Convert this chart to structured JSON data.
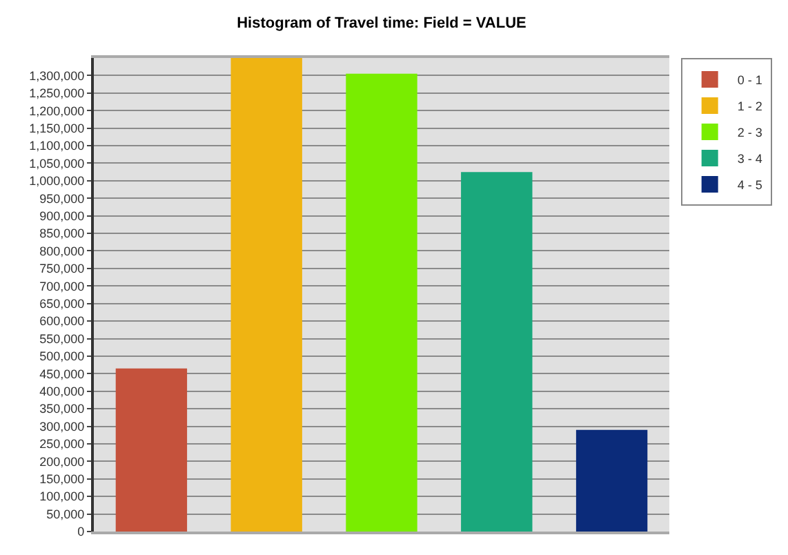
{
  "chart_data": {
    "type": "bar",
    "title": "Histogram of Travel time: Field = VALUE",
    "categories": [
      null,
      null,
      null,
      null,
      null
    ],
    "series": [
      {
        "name": "0 - 1",
        "color": "#c5523c",
        "values": [
          465000,
          null,
          null,
          null,
          null
        ]
      },
      {
        "name": "1 - 2",
        "color": "#efb412",
        "values": [
          null,
          1350000,
          null,
          null,
          null
        ]
      },
      {
        "name": "2 - 3",
        "color": "#79ed00",
        "values": [
          null,
          null,
          1305000,
          null,
          null
        ]
      },
      {
        "name": "3 - 4",
        "color": "#1aa87c",
        "values": [
          null,
          null,
          null,
          1025000,
          null
        ]
      },
      {
        "name": "4 - 5",
        "color": "#0b2b7a",
        "values": [
          null,
          null,
          null,
          null,
          290000
        ]
      }
    ],
    "ylim": [
      0,
      1350000
    ],
    "yticks": [
      0,
      {
        "value": 50000,
        "label": "50,000"
      },
      {
        "value": 100000,
        "label": "100,000"
      },
      {
        "value": 150000,
        "label": "150,000"
      },
      {
        "value": 200000,
        "label": "200,000"
      },
      {
        "value": 250000,
        "label": "250,000"
      },
      {
        "value": 300000,
        "label": "300,000"
      },
      {
        "value": 350000,
        "label": "350,000"
      },
      {
        "value": 400000,
        "label": "400,000"
      },
      {
        "value": 450000,
        "label": "450,000"
      },
      {
        "value": 500000,
        "label": "500,000"
      },
      {
        "value": 550000,
        "label": "550,000"
      },
      {
        "value": 600000,
        "label": "600,000"
      },
      {
        "value": 650000,
        "label": "650,000"
      },
      {
        "value": 700000,
        "label": "700,000"
      },
      {
        "value": 750000,
        "label": "750,000"
      },
      {
        "value": 800000,
        "label": "800,000"
      },
      {
        "value": 850000,
        "label": "850,000"
      },
      {
        "value": 900000,
        "label": "900,000"
      },
      {
        "value": 950000,
        "label": "950,000"
      },
      {
        "value": 1000000,
        "label": "1,000,000"
      },
      {
        "value": 1050000,
        "label": "1,050,000"
      },
      {
        "value": 1100000,
        "label": "1,100,000"
      },
      {
        "value": 1150000,
        "label": "1,150,000"
      },
      {
        "value": 1200000,
        "label": "1,200,000"
      },
      {
        "value": 1250000,
        "label": "1,250,000"
      },
      {
        "value": 1300000,
        "label": "1,300,000"
      }
    ],
    "grid": "y",
    "legend": "top right"
  }
}
